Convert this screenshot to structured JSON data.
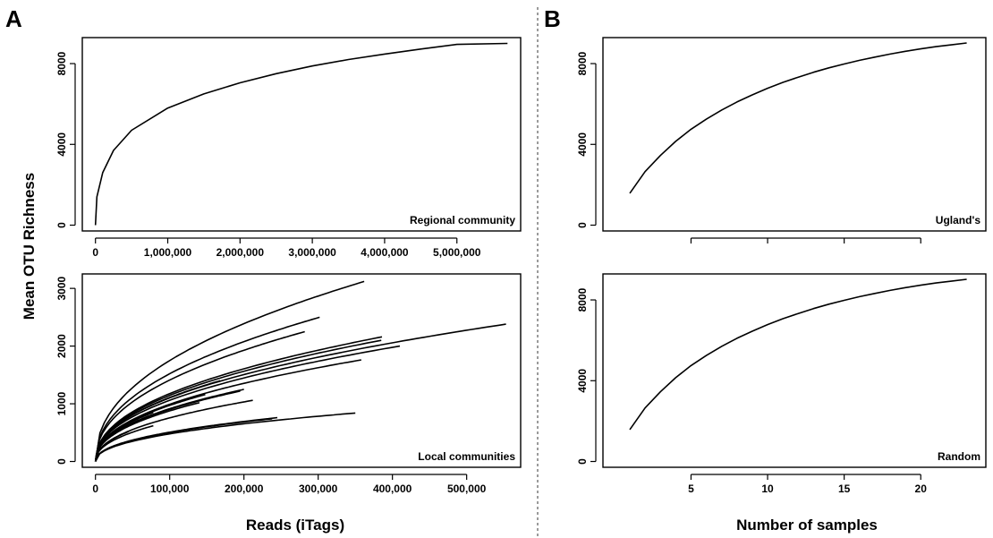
{
  "figure": {
    "panel_a": "A",
    "panel_b": "B",
    "ylabel": "Mean OTU Richness",
    "xlabel_a": "Reads (iTags)",
    "xlabel_b": "Number of samples"
  },
  "chart_data": [
    {
      "id": "regional",
      "type": "line",
      "label": "Regional community",
      "xlim": [
        0,
        5700000
      ],
      "ylim": [
        0,
        9000
      ],
      "xticks": [
        0,
        1000000,
        2000000,
        3000000,
        4000000,
        5000000
      ],
      "xtick_labels": [
        "0",
        "1,000,000",
        "2,000,000",
        "3,000,000",
        "4,000,000",
        "5,000,000"
      ],
      "yticks": [
        0,
        4000,
        8000
      ],
      "ytick_labels": [
        "0",
        "4000",
        "8000"
      ],
      "series": [
        {
          "x": [
            0,
            20000,
            100000,
            250000,
            500000,
            1000000,
            1500000,
            2000000,
            2500000,
            3000000,
            3500000,
            4000000,
            4500000,
            5000000,
            5700000
          ],
          "y": [
            0,
            1400,
            2600,
            3700,
            4700,
            5800,
            6500,
            7050,
            7500,
            7880,
            8200,
            8470,
            8720,
            8950,
            9000
          ]
        }
      ]
    },
    {
      "id": "local",
      "type": "line",
      "label": "Local communities",
      "xlim": [
        0,
        555000
      ],
      "ylim": [
        0,
        3150
      ],
      "xticks": [
        0,
        100000,
        200000,
        300000,
        400000,
        500000
      ],
      "xtick_labels": [
        "0",
        "100,000",
        "200,000",
        "300,000",
        "400,000",
        "500,000"
      ],
      "yticks": [
        0,
        1000,
        2000,
        3000
      ],
      "ytick_labels": [
        "0",
        "1000",
        "2000",
        "3000"
      ],
      "exponent": 0.45,
      "series": [
        {
          "xmax": 362000,
          "ymax": 3120
        },
        {
          "xmax": 302000,
          "ymax": 2500
        },
        {
          "xmax": 282000,
          "ymax": 2250
        },
        {
          "xmax": 553000,
          "ymax": 2380
        },
        {
          "xmax": 386000,
          "ymax": 2160
        },
        {
          "xmax": 385000,
          "ymax": 2100
        },
        {
          "xmax": 410000,
          "ymax": 2000
        },
        {
          "xmax": 358000,
          "ymax": 1760
        },
        {
          "xmax": 168000,
          "ymax": 1400
        },
        {
          "xmax": 200000,
          "ymax": 1250
        },
        {
          "xmax": 195000,
          "ymax": 1220
        },
        {
          "xmax": 148000,
          "ymax": 1160
        },
        {
          "xmax": 212000,
          "ymax": 1060
        },
        {
          "xmax": 140000,
          "ymax": 1020
        },
        {
          "xmax": 78000,
          "ymax": 850
        },
        {
          "xmax": 350000,
          "ymax": 840
        },
        {
          "xmax": 245000,
          "ymax": 760
        },
        {
          "xmax": 238000,
          "ymax": 740
        },
        {
          "xmax": 78000,
          "ymax": 620
        },
        {
          "xmax": 45000,
          "ymax": 520
        }
      ]
    },
    {
      "id": "uglands",
      "type": "line",
      "label": "Ugland's",
      "xlim": [
        0,
        23.5
      ],
      "ylim": [
        0,
        9000
      ],
      "xticks": [
        5,
        10,
        15,
        20
      ],
      "xtick_labels": [
        "",
        "",
        "",
        ""
      ],
      "yticks": [
        0,
        4000,
        8000
      ],
      "ytick_labels": [
        "0",
        "4000",
        "8000"
      ],
      "series": [
        {
          "x": [
            1,
            2,
            3,
            4,
            5,
            6,
            7,
            8,
            9,
            10,
            11,
            12,
            13,
            14,
            15,
            16,
            17,
            18,
            19,
            20,
            21,
            22,
            23
          ],
          "y": [
            1580,
            2650,
            3450,
            4150,
            4750,
            5250,
            5700,
            6100,
            6450,
            6780,
            7070,
            7330,
            7570,
            7790,
            7980,
            8160,
            8320,
            8470,
            8610,
            8730,
            8840,
            8930,
            9020
          ]
        }
      ]
    },
    {
      "id": "random",
      "type": "line",
      "label": "Random",
      "xlim": [
        0,
        23.5
      ],
      "ylim": [
        0,
        9000
      ],
      "xticks": [
        5,
        10,
        15,
        20
      ],
      "xtick_labels": [
        "5",
        "10",
        "15",
        "20"
      ],
      "yticks": [
        0,
        4000,
        8000
      ],
      "ytick_labels": [
        "0",
        "4000",
        "8000"
      ],
      "series": [
        {
          "x": [
            1,
            2,
            3,
            4,
            5,
            6,
            7,
            8,
            9,
            10,
            11,
            12,
            13,
            14,
            15,
            16,
            17,
            18,
            19,
            20,
            21,
            22,
            23
          ],
          "y": [
            1580,
            2650,
            3450,
            4150,
            4750,
            5250,
            5700,
            6100,
            6450,
            6780,
            7070,
            7330,
            7570,
            7790,
            7980,
            8160,
            8320,
            8470,
            8610,
            8730,
            8840,
            8930,
            9020
          ]
        }
      ]
    }
  ]
}
